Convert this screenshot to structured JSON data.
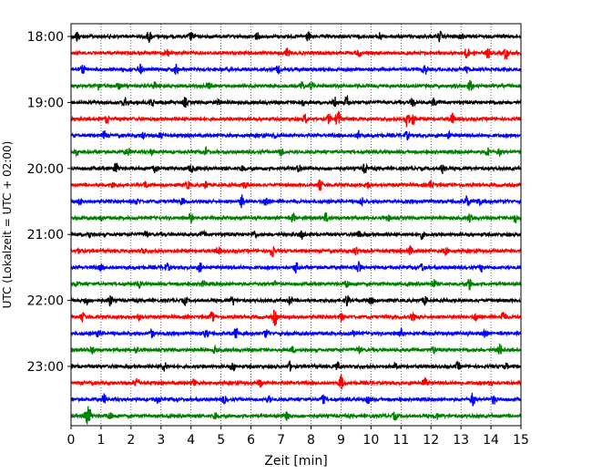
{
  "chart_data": {
    "type": "line",
    "title": "",
    "xlabel": "Zeit  [min]",
    "ylabel": "UTC (Lokalzeit = UTC + 02:00)",
    "xlim": [
      0,
      15
    ],
    "x_ticks": [
      0,
      1,
      2,
      3,
      4,
      5,
      6,
      7,
      8,
      9,
      10,
      11,
      12,
      13,
      14,
      15
    ],
    "y_tick_labels": [
      "18:00",
      "19:00",
      "20:00",
      "21:00",
      "22:00",
      "23:00"
    ],
    "grid": "vertical dotted",
    "trace_colors": [
      "#000000",
      "#ff0000",
      "#0000ff",
      "#008000"
    ],
    "traces": [
      {
        "start": "18:00",
        "bursts": [
          [
            0.2,
            0.5
          ],
          [
            2.6,
            0.6
          ],
          [
            4.0,
            0.4
          ],
          [
            6.2,
            0.4
          ],
          [
            7.9,
            0.5
          ],
          [
            10.3,
            0.4
          ],
          [
            12.3,
            0.5
          ],
          [
            13.0,
            0.4
          ]
        ]
      },
      {
        "start": "18:15",
        "bursts": [
          [
            3.2,
            0.4
          ],
          [
            7.2,
            0.5
          ],
          [
            9.6,
            0.4
          ],
          [
            13.2,
            0.6
          ],
          [
            13.9,
            0.5
          ],
          [
            14.5,
            0.7
          ]
        ]
      },
      {
        "start": "18:30",
        "bursts": [
          [
            0.4,
            0.4
          ],
          [
            2.3,
            0.5
          ],
          [
            3.5,
            0.5
          ],
          [
            6.9,
            0.4
          ],
          [
            11.8,
            0.5
          ],
          [
            13.2,
            0.3
          ]
        ]
      },
      {
        "start": "18:45",
        "bursts": [
          [
            0.9,
            0.4
          ],
          [
            1.6,
            0.3
          ],
          [
            2.8,
            0.4
          ],
          [
            4.6,
            0.3
          ],
          [
            7.7,
            0.5
          ],
          [
            8.0,
            0.4
          ],
          [
            13.3,
            0.5
          ]
        ]
      },
      {
        "start": "19:00",
        "bursts": [
          [
            1.8,
            0.5
          ],
          [
            2.7,
            0.5
          ],
          [
            3.8,
            0.5
          ],
          [
            4.9,
            0.3
          ],
          [
            7.7,
            0.4
          ],
          [
            8.8,
            0.6
          ],
          [
            9.2,
            0.7
          ],
          [
            11.4,
            0.4
          ],
          [
            12.1,
            0.4
          ]
        ]
      },
      {
        "start": "19:15",
        "bursts": [
          [
            1.2,
            0.4
          ],
          [
            7.8,
            0.5
          ],
          [
            8.6,
            0.5
          ],
          [
            8.9,
            1.0
          ],
          [
            11.2,
            0.9
          ],
          [
            11.4,
            0.6
          ],
          [
            12.7,
            0.6
          ]
        ]
      },
      {
        "start": "19:30",
        "bursts": [
          [
            1.1,
            0.4
          ],
          [
            2.4,
            0.3
          ],
          [
            3.0,
            0.3
          ],
          [
            6.8,
            0.3
          ],
          [
            9.6,
            0.5
          ],
          [
            11.2,
            0.4
          ],
          [
            12.6,
            0.3
          ]
        ]
      },
      {
        "start": "19:45",
        "bursts": [
          [
            0.2,
            0.3
          ],
          [
            1.9,
            0.4
          ],
          [
            2.7,
            0.3
          ],
          [
            4.5,
            0.4
          ],
          [
            7.0,
            0.4
          ],
          [
            13.9,
            0.4
          ],
          [
            14.3,
            0.3
          ]
        ]
      },
      {
        "start": "20:00",
        "bursts": [
          [
            1.5,
            0.6
          ],
          [
            2.8,
            0.4
          ],
          [
            4.0,
            0.4
          ],
          [
            5.7,
            0.3
          ],
          [
            7.6,
            0.4
          ],
          [
            9.8,
            0.5
          ],
          [
            12.4,
            0.5
          ]
        ]
      },
      {
        "start": "20:15",
        "bursts": [
          [
            1.4,
            0.3
          ],
          [
            2.5,
            0.3
          ],
          [
            3.9,
            0.4
          ],
          [
            4.5,
            0.4
          ],
          [
            5.8,
            0.4
          ],
          [
            8.3,
            0.5
          ],
          [
            9.9,
            0.3
          ],
          [
            12.0,
            0.4
          ]
        ]
      },
      {
        "start": "20:30",
        "bursts": [
          [
            0.3,
            0.3
          ],
          [
            2.2,
            0.3
          ],
          [
            3.7,
            0.4
          ],
          [
            5.7,
            0.7
          ],
          [
            6.5,
            0.6
          ],
          [
            9.7,
            0.4
          ],
          [
            13.2,
            0.6
          ],
          [
            13.6,
            0.4
          ]
        ]
      },
      {
        "start": "20:45",
        "bursts": [
          [
            1.0,
            0.3
          ],
          [
            4.0,
            0.5
          ],
          [
            7.4,
            0.5
          ],
          [
            8.5,
            0.5
          ],
          [
            10.6,
            0.3
          ],
          [
            13.3,
            0.4
          ],
          [
            14.8,
            0.5
          ]
        ]
      },
      {
        "start": "21:00",
        "bursts": [
          [
            0.6,
            0.3
          ],
          [
            2.5,
            0.4
          ],
          [
            4.4,
            0.3
          ],
          [
            6.1,
            0.4
          ],
          [
            7.7,
            0.4
          ],
          [
            9.6,
            0.3
          ],
          [
            11.7,
            0.4
          ]
        ]
      },
      {
        "start": "21:15",
        "bursts": [
          [
            0.3,
            0.3
          ],
          [
            2.4,
            0.3
          ],
          [
            4.9,
            0.4
          ],
          [
            6.7,
            0.7
          ],
          [
            9.5,
            0.4
          ],
          [
            11.3,
            0.5
          ],
          [
            12.5,
            0.4
          ]
        ]
      },
      {
        "start": "21:30",
        "bursts": [
          [
            1.0,
            0.3
          ],
          [
            3.2,
            0.4
          ],
          [
            4.3,
            0.5
          ],
          [
            7.5,
            0.6
          ],
          [
            9.6,
            0.7
          ],
          [
            11.7,
            0.4
          ],
          [
            13.7,
            0.4
          ]
        ]
      },
      {
        "start": "21:45",
        "bursts": [
          [
            0.2,
            0.3
          ],
          [
            2.3,
            0.3
          ],
          [
            4.4,
            0.3
          ],
          [
            6.8,
            0.3
          ],
          [
            9.2,
            0.4
          ],
          [
            12.1,
            0.4
          ],
          [
            13.3,
            0.6
          ]
        ]
      },
      {
        "start": "22:00",
        "bursts": [
          [
            0.5,
            0.4
          ],
          [
            1.3,
            0.6
          ],
          [
            3.8,
            0.4
          ],
          [
            5.4,
            0.4
          ],
          [
            7.3,
            0.4
          ],
          [
            9.2,
            0.6
          ],
          [
            10.0,
            0.4
          ],
          [
            11.8,
            0.4
          ]
        ]
      },
      {
        "start": "22:15",
        "bursts": [
          [
            0.4,
            0.4
          ],
          [
            2.3,
            0.3
          ],
          [
            4.7,
            0.5
          ],
          [
            6.8,
            0.9
          ],
          [
            9.0,
            0.4
          ],
          [
            11.4,
            0.4
          ],
          [
            13.5,
            0.4
          ],
          [
            14.4,
            0.6
          ]
        ]
      },
      {
        "start": "22:30",
        "bursts": [
          [
            0.9,
            0.3
          ],
          [
            2.7,
            0.4
          ],
          [
            4.5,
            0.4
          ],
          [
            5.5,
            0.6
          ],
          [
            6.5,
            0.4
          ],
          [
            9.4,
            0.4
          ],
          [
            11.0,
            0.4
          ],
          [
            13.8,
            0.4
          ]
        ]
      },
      {
        "start": "22:45",
        "bursts": [
          [
            0.7,
            0.5
          ],
          [
            2.2,
            0.3
          ],
          [
            4.8,
            0.3
          ],
          [
            7.4,
            0.3
          ],
          [
            9.6,
            0.4
          ],
          [
            12.1,
            0.4
          ],
          [
            14.3,
            0.6
          ]
        ]
      },
      {
        "start": "23:00",
        "bursts": [
          [
            3.1,
            0.5
          ],
          [
            5.4,
            0.5
          ],
          [
            7.3,
            0.4
          ],
          [
            8.9,
            0.4
          ],
          [
            10.8,
            0.3
          ],
          [
            12.9,
            0.4
          ],
          [
            14.5,
            0.3
          ]
        ]
      },
      {
        "start": "23:15",
        "bursts": [
          [
            2.2,
            0.6
          ],
          [
            4.1,
            0.4
          ],
          [
            6.3,
            0.4
          ],
          [
            9.0,
            0.8
          ],
          [
            11.8,
            0.6
          ],
          [
            14.0,
            0.3
          ]
        ]
      },
      {
        "start": "23:30",
        "bursts": [
          [
            1.1,
            0.5
          ],
          [
            2.9,
            0.4
          ],
          [
            5.1,
            0.4
          ],
          [
            6.6,
            0.5
          ],
          [
            8.4,
            0.4
          ],
          [
            9.9,
            0.4
          ],
          [
            13.4,
            0.7
          ],
          [
            14.1,
            0.5
          ]
        ]
      },
      {
        "start": "23:45",
        "bursts": [
          [
            0.5,
            0.6
          ],
          [
            0.6,
            0.9
          ],
          [
            1.3,
            0.4
          ],
          [
            4.8,
            0.4
          ],
          [
            7.2,
            0.4
          ],
          [
            10.8,
            0.4
          ],
          [
            12.2,
            0.3
          ]
        ]
      }
    ]
  }
}
